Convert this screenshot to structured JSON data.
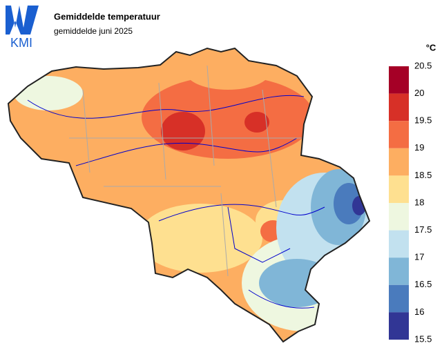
{
  "logo": {
    "text": "KMI"
  },
  "header": {
    "title": "Gemiddelde temperatuur",
    "subtitle": "gemiddelde juni 2025"
  },
  "legend": {
    "unit": "°C",
    "ticks": [
      20.5,
      20,
      19.5,
      19,
      18.5,
      18,
      17.5,
      17,
      16.5,
      16,
      15.5
    ],
    "colors": [
      "#a50026",
      "#d73027",
      "#f46d43",
      "#fdae61",
      "#fee090",
      "#eef7e0",
      "#c2e1ef",
      "#80b6d7",
      "#4a7bbd",
      "#313695"
    ]
  }
}
